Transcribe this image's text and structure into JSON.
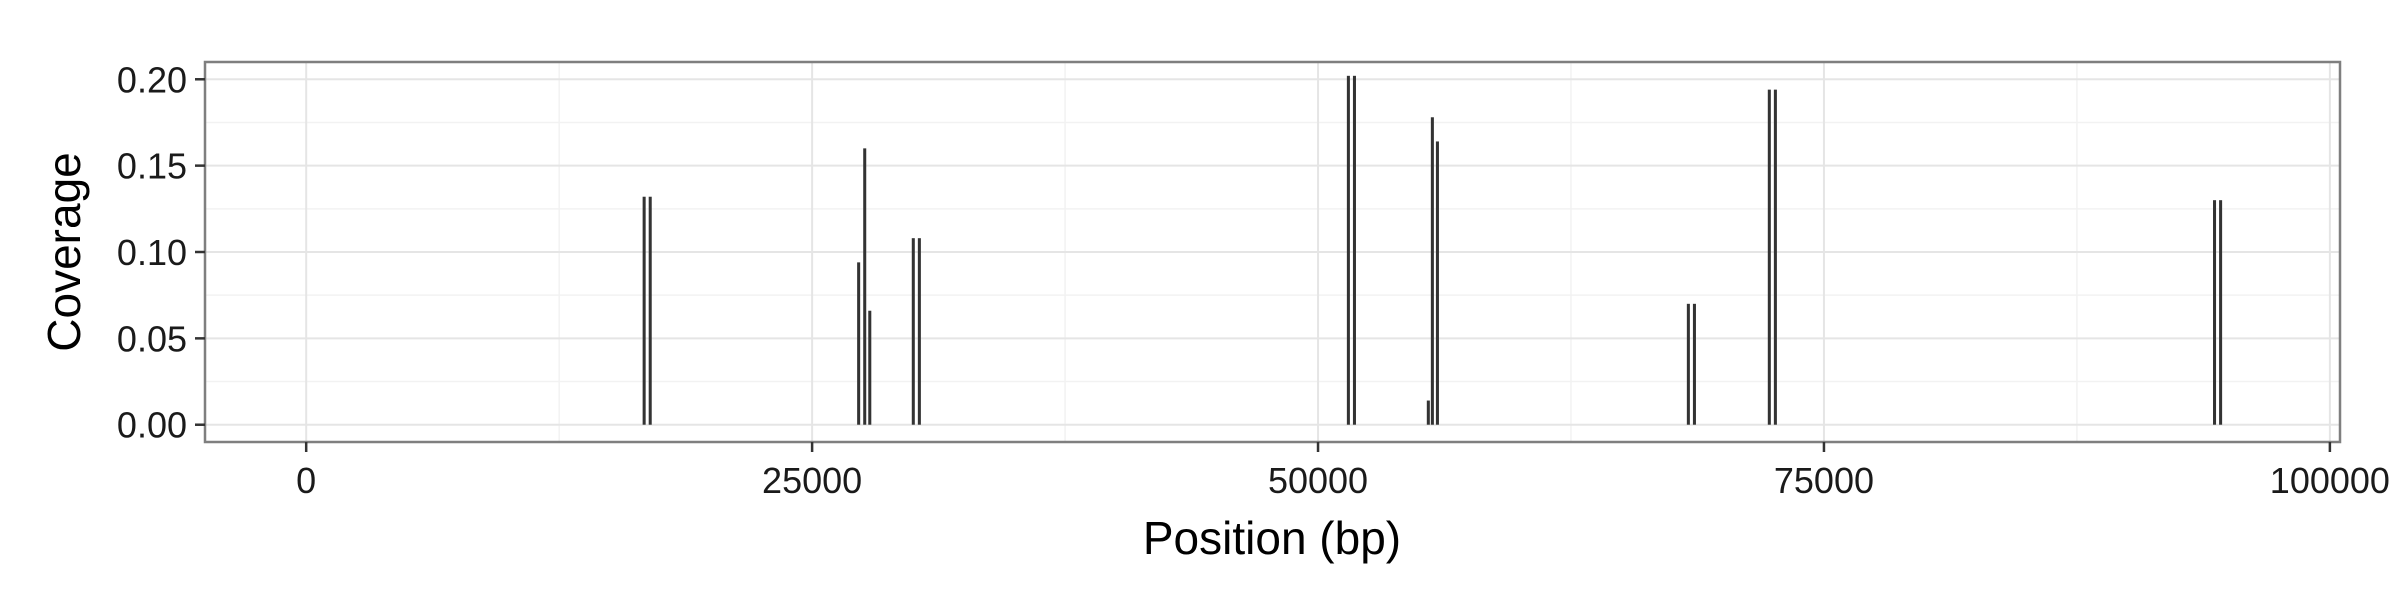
{
  "chart_data": {
    "type": "bar",
    "xlabel": "Position (bp)",
    "ylabel": "Coverage",
    "xlim": [
      -5000,
      100500
    ],
    "ylim": [
      -0.01,
      0.21
    ],
    "x_ticks": [
      0,
      25000,
      50000,
      75000,
      100000
    ],
    "x_tick_labels": [
      "0",
      "25000",
      "50000",
      "75000",
      "100000"
    ],
    "y_ticks": [
      0.0,
      0.05,
      0.1,
      0.15,
      0.2
    ],
    "y_tick_labels": [
      "0.00",
      "0.05",
      "0.10",
      "0.15",
      "0.20"
    ],
    "grid": true,
    "bar_color": "#333333",
    "bar_width_bp": 150,
    "x": [
      16700,
      17000,
      27300,
      27600,
      27850,
      30000,
      30300,
      51500,
      51800,
      55450,
      55650,
      55900,
      68300,
      68600,
      72300,
      72600,
      94300,
      94600
    ],
    "values": [
      0.132,
      0.132,
      0.094,
      0.16,
      0.066,
      0.108,
      0.108,
      0.202,
      0.202,
      0.014,
      0.178,
      0.164,
      0.07,
      0.07,
      0.194,
      0.194,
      0.13,
      0.13
    ]
  }
}
